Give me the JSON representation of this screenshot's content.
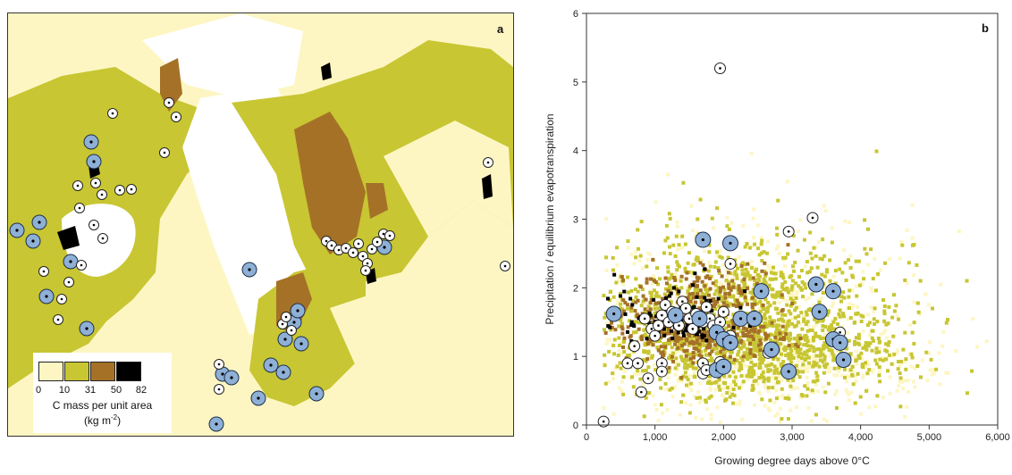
{
  "panel_a": {
    "letter": "a",
    "legend": {
      "ticks": [
        "0",
        "10",
        "31",
        "50",
        "82"
      ],
      "title_line1": "C mass per unit area",
      "title_line2_prefix": "(kg m",
      "title_line2_sup": "-2",
      "title_line2_suffix": ")",
      "colors": [
        "#fdf6c3",
        "#c8c632",
        "#a57127",
        "#000000"
      ]
    }
  },
  "panel_b": {
    "letter": "b",
    "chart_data": {
      "type": "scatter",
      "xlabel": "Growing degree days above 0°C",
      "ylabel": "Precipitation / equilibrium evapotranspiration",
      "xlim": [
        0,
        6000
      ],
      "ylim": [
        0,
        6
      ],
      "xticks": [
        0,
        1000,
        2000,
        3000,
        4000,
        5000,
        6000
      ],
      "xtick_labels": [
        "0",
        "1,000",
        "2,000",
        "3,000",
        "4,000",
        "5,000",
        "6,000"
      ],
      "yticks": [
        0,
        1,
        2,
        3,
        4,
        5,
        6
      ],
      "ytick_labels": [
        "0",
        "1",
        "2",
        "3",
        "4",
        "5",
        "6"
      ],
      "background_colors": {
        "low": "#fdf6c3",
        "mid": "#c8c632",
        "high": "#a57127",
        "peak": "#000000"
      },
      "blue_sites": [
        {
          "x": 400,
          "y": 1.62
        },
        {
          "x": 1300,
          "y": 1.6
        },
        {
          "x": 1700,
          "y": 2.7
        },
        {
          "x": 2100,
          "y": 2.65
        },
        {
          "x": 1650,
          "y": 1.55
        },
        {
          "x": 1900,
          "y": 1.35
        },
        {
          "x": 2000,
          "y": 1.25
        },
        {
          "x": 2100,
          "y": 1.2
        },
        {
          "x": 2250,
          "y": 1.55
        },
        {
          "x": 2450,
          "y": 1.55
        },
        {
          "x": 2550,
          "y": 1.95
        },
        {
          "x": 1900,
          "y": 0.8
        },
        {
          "x": 2000,
          "y": 0.85
        },
        {
          "x": 2700,
          "y": 1.1
        },
        {
          "x": 2950,
          "y": 0.78
        },
        {
          "x": 3350,
          "y": 2.05
        },
        {
          "x": 3400,
          "y": 1.65
        },
        {
          "x": 3600,
          "y": 1.95
        },
        {
          "x": 3600,
          "y": 1.25
        },
        {
          "x": 3700,
          "y": 1.2
        },
        {
          "x": 3750,
          "y": 0.95
        }
      ],
      "white_sites": [
        {
          "x": 250,
          "y": 0.05
        },
        {
          "x": 800,
          "y": 0.48
        },
        {
          "x": 600,
          "y": 0.9
        },
        {
          "x": 750,
          "y": 0.9
        },
        {
          "x": 700,
          "y": 1.15
        },
        {
          "x": 900,
          "y": 0.68
        },
        {
          "x": 1100,
          "y": 0.9
        },
        {
          "x": 1100,
          "y": 0.78
        },
        {
          "x": 850,
          "y": 1.55
        },
        {
          "x": 950,
          "y": 1.4
        },
        {
          "x": 1000,
          "y": 1.3
        },
        {
          "x": 1050,
          "y": 1.45
        },
        {
          "x": 1100,
          "y": 1.6
        },
        {
          "x": 1150,
          "y": 1.75
        },
        {
          "x": 1200,
          "y": 1.5
        },
        {
          "x": 1250,
          "y": 1.65
        },
        {
          "x": 1300,
          "y": 1.55
        },
        {
          "x": 1350,
          "y": 1.45
        },
        {
          "x": 1400,
          "y": 1.8
        },
        {
          "x": 1450,
          "y": 1.7
        },
        {
          "x": 1500,
          "y": 1.55
        },
        {
          "x": 1550,
          "y": 1.4
        },
        {
          "x": 1600,
          "y": 1.62
        },
        {
          "x": 1700,
          "y": 1.5
        },
        {
          "x": 1750,
          "y": 1.72
        },
        {
          "x": 1800,
          "y": 1.55
        },
        {
          "x": 1850,
          "y": 1.45
        },
        {
          "x": 1950,
          "y": 1.5
        },
        {
          "x": 2000,
          "y": 1.65
        },
        {
          "x": 2100,
          "y": 1.3
        },
        {
          "x": 1700,
          "y": 0.9
        },
        {
          "x": 1700,
          "y": 0.75
        },
        {
          "x": 1750,
          "y": 0.8
        },
        {
          "x": 1950,
          "y": 0.92
        },
        {
          "x": 2100,
          "y": 2.35
        },
        {
          "x": 1950,
          "y": 5.2
        },
        {
          "x": 2950,
          "y": 2.82
        },
        {
          "x": 3300,
          "y": 3.02
        },
        {
          "x": 2650,
          "y": 1.05
        },
        {
          "x": 3700,
          "y": 1.35
        }
      ]
    }
  }
}
